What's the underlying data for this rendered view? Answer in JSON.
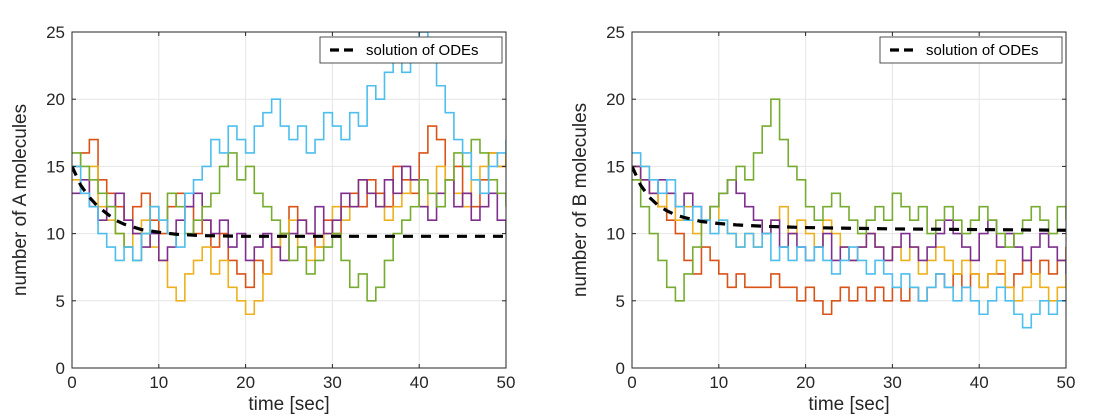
{
  "chart_data": [
    {
      "type": "line",
      "xlabel": "time [sec]",
      "ylabel": "number of A molecules",
      "xlim": [
        0,
        50
      ],
      "ylim": [
        0,
        25
      ],
      "xticks": [
        0,
        10,
        20,
        30,
        40,
        50
      ],
      "yticks": [
        0,
        5,
        10,
        15,
        20,
        25
      ],
      "grid": true,
      "legend": {
        "position": "top-right",
        "entries": [
          "solution of ODEs"
        ]
      },
      "series": [
        {
          "name": "solution of ODEs",
          "style": "dashed",
          "color": "#000000",
          "x": [
            0,
            1,
            2,
            3,
            4,
            5,
            6,
            8,
            10,
            12,
            15,
            20,
            25,
            30,
            40,
            50
          ],
          "y": [
            15,
            13.6,
            12.7,
            12.0,
            11.5,
            11.0,
            10.7,
            10.3,
            10.1,
            9.95,
            9.85,
            9.8,
            9.8,
            9.8,
            9.8,
            9.8
          ]
        },
        {
          "color": "#D95319",
          "x": [
            0,
            1,
            2,
            3,
            4,
            5,
            6,
            7,
            8,
            9,
            10,
            11,
            12,
            13,
            14,
            15,
            16,
            17,
            18,
            19,
            20,
            21,
            22,
            23,
            24,
            25,
            26,
            27,
            28,
            29,
            30,
            31,
            32,
            33,
            34,
            35,
            36,
            37,
            38,
            39,
            40,
            41,
            42,
            43,
            44,
            45,
            46,
            47,
            48,
            49,
            50
          ],
          "y": [
            15,
            16,
            17,
            14,
            13,
            12,
            11,
            12,
            13,
            11,
            10,
            12,
            13,
            12,
            10,
            11,
            9,
            10,
            8,
            7,
            6,
            8,
            7,
            9,
            10,
            12,
            11,
            10,
            9,
            11,
            10,
            12,
            13,
            12,
            14,
            13,
            12,
            15,
            14,
            13,
            16,
            18,
            17,
            14,
            15,
            13,
            12,
            14,
            16,
            15,
            16
          ]
        },
        {
          "color": "#EDB120",
          "x": [
            0,
            1,
            2,
            3,
            4,
            5,
            6,
            7,
            8,
            9,
            10,
            11,
            12,
            13,
            14,
            15,
            16,
            17,
            18,
            19,
            20,
            21,
            22,
            23,
            24,
            25,
            26,
            27,
            28,
            29,
            30,
            31,
            32,
            33,
            34,
            35,
            36,
            37,
            38,
            39,
            40,
            41,
            42,
            43,
            44,
            45,
            46,
            47,
            48,
            49,
            50
          ],
          "y": [
            14,
            13,
            15,
            12,
            11,
            10,
            9,
            10,
            11,
            9,
            8,
            6,
            5,
            7,
            8,
            9,
            7,
            8,
            6,
            5,
            4,
            5,
            7,
            9,
            10,
            11,
            9,
            8,
            9,
            10,
            12,
            11,
            12,
            14,
            13,
            12,
            11,
            12,
            13,
            14,
            12,
            13,
            15,
            14,
            13,
            12,
            14,
            15,
            16,
            15,
            16
          ]
        },
        {
          "color": "#7E2F8E",
          "x": [
            0,
            1,
            2,
            3,
            4,
            5,
            6,
            7,
            8,
            9,
            10,
            11,
            12,
            13,
            14,
            15,
            16,
            17,
            18,
            19,
            20,
            21,
            22,
            23,
            24,
            25,
            26,
            27,
            28,
            29,
            30,
            31,
            32,
            33,
            34,
            35,
            36,
            37,
            38,
            39,
            40,
            41,
            42,
            43,
            44,
            45,
            46,
            47,
            48,
            49,
            50
          ],
          "y": [
            13,
            14,
            12,
            11,
            12,
            13,
            11,
            10,
            9,
            10,
            8,
            9,
            11,
            12,
            13,
            11,
            10,
            11,
            9,
            10,
            8,
            9,
            10,
            9,
            8,
            10,
            11,
            10,
            12,
            10,
            11,
            13,
            12,
            14,
            13,
            12,
            14,
            13,
            15,
            14,
            12,
            11,
            13,
            14,
            12,
            13,
            11,
            12,
            13,
            11,
            10
          ]
        },
        {
          "color": "#77AC30",
          "x": [
            0,
            1,
            2,
            3,
            4,
            5,
            6,
            7,
            8,
            9,
            10,
            11,
            12,
            13,
            14,
            15,
            16,
            17,
            18,
            19,
            20,
            21,
            22,
            23,
            24,
            25,
            26,
            27,
            28,
            29,
            30,
            31,
            32,
            33,
            34,
            35,
            36,
            37,
            38,
            39,
            40,
            41,
            42,
            43,
            44,
            45,
            46,
            47,
            48,
            49,
            50
          ],
          "y": [
            16,
            15,
            14,
            13,
            12,
            10,
            9,
            8,
            10,
            12,
            11,
            13,
            12,
            10,
            11,
            12,
            13,
            15,
            16,
            14,
            15,
            13,
            12,
            11,
            10,
            8,
            9,
            7,
            8,
            9,
            10,
            8,
            6,
            7,
            5,
            6,
            8,
            10,
            11,
            12,
            14,
            13,
            12,
            14,
            16,
            15,
            17,
            16,
            14,
            13,
            12
          ]
        },
        {
          "color": "#4DBEEE",
          "x": [
            0,
            1,
            2,
            3,
            4,
            5,
            6,
            7,
            8,
            9,
            10,
            11,
            12,
            13,
            14,
            15,
            16,
            17,
            18,
            19,
            20,
            21,
            22,
            23,
            24,
            25,
            26,
            27,
            28,
            29,
            30,
            31,
            32,
            33,
            34,
            35,
            36,
            37,
            38,
            39,
            40,
            41,
            42,
            43,
            44,
            45,
            46,
            47,
            48,
            49,
            50
          ],
          "y": [
            15,
            13,
            12,
            10,
            9,
            8,
            9,
            8,
            10,
            12,
            11,
            10,
            9,
            13,
            14,
            15,
            17,
            16,
            18,
            17,
            16,
            18,
            19,
            20,
            18,
            17,
            18,
            16,
            17,
            19,
            18,
            17,
            19,
            18,
            21,
            20,
            22,
            23,
            22,
            24,
            25,
            23,
            21,
            19,
            17,
            16,
            14,
            13,
            15,
            16,
            17
          ]
        }
      ]
    },
    {
      "type": "line",
      "xlabel": "time [sec]",
      "ylabel": "number of B molecules",
      "xlim": [
        0,
        50
      ],
      "ylim": [
        0,
        25
      ],
      "xticks": [
        0,
        10,
        20,
        30,
        40,
        50
      ],
      "yticks": [
        0,
        5,
        10,
        15,
        20,
        25
      ],
      "grid": true,
      "legend": {
        "position": "top-right",
        "entries": [
          "solution of ODEs"
        ]
      },
      "series": [
        {
          "name": "solution of ODEs",
          "style": "dashed",
          "color": "#000000",
          "x": [
            0,
            1,
            2,
            3,
            4,
            5,
            6,
            8,
            10,
            12,
            15,
            20,
            25,
            30,
            40,
            50
          ],
          "y": [
            15,
            13.6,
            12.7,
            12.1,
            11.7,
            11.4,
            11.2,
            10.9,
            10.75,
            10.65,
            10.55,
            10.45,
            10.4,
            10.35,
            10.3,
            10.25
          ]
        },
        {
          "color": "#D95319",
          "x": [
            0,
            1,
            2,
            3,
            4,
            5,
            6,
            7,
            8,
            9,
            10,
            11,
            12,
            13,
            14,
            15,
            16,
            17,
            18,
            19,
            20,
            21,
            22,
            23,
            24,
            25,
            26,
            27,
            28,
            29,
            30,
            31,
            32,
            33,
            34,
            35,
            36,
            37,
            38,
            39,
            40,
            41,
            42,
            43,
            44,
            45,
            46,
            47,
            48,
            49,
            50
          ],
          "y": [
            15,
            14,
            13,
            12,
            11,
            10,
            8,
            7,
            9,
            8,
            7,
            6,
            7,
            6,
            6,
            6,
            7,
            6,
            6,
            5,
            6,
            5,
            4,
            5,
            6,
            5,
            6,
            5,
            6,
            5,
            6,
            5,
            6,
            5,
            6,
            7,
            6,
            7,
            6,
            7,
            6,
            7,
            7,
            6,
            7,
            8,
            7,
            8,
            7,
            8,
            9
          ]
        },
        {
          "color": "#EDB120",
          "x": [
            0,
            1,
            2,
            3,
            4,
            5,
            6,
            7,
            8,
            9,
            10,
            11,
            12,
            13,
            14,
            15,
            16,
            17,
            18,
            19,
            20,
            21,
            22,
            23,
            24,
            25,
            26,
            27,
            28,
            29,
            30,
            31,
            32,
            33,
            34,
            35,
            36,
            37,
            38,
            39,
            40,
            41,
            42,
            43,
            44,
            45,
            46,
            47,
            48,
            49,
            50
          ],
          "y": [
            14,
            15,
            13,
            12,
            13,
            11,
            12,
            10,
            11,
            12,
            11,
            10,
            9,
            10,
            9,
            10,
            11,
            12,
            10,
            11,
            10,
            9,
            11,
            10,
            9,
            8,
            9,
            10,
            9,
            8,
            9,
            8,
            9,
            7,
            8,
            9,
            8,
            7,
            8,
            7,
            6,
            7,
            8,
            6,
            5,
            6,
            7,
            6,
            5,
            6,
            7
          ]
        },
        {
          "color": "#7E2F8E",
          "x": [
            0,
            1,
            2,
            3,
            4,
            5,
            6,
            7,
            8,
            9,
            10,
            11,
            12,
            13,
            14,
            15,
            16,
            17,
            18,
            19,
            20,
            21,
            22,
            23,
            24,
            25,
            26,
            27,
            28,
            29,
            30,
            31,
            32,
            33,
            34,
            35,
            36,
            37,
            38,
            39,
            40,
            41,
            42,
            43,
            44,
            45,
            46,
            47,
            48,
            49,
            50
          ],
          "y": [
            15,
            14,
            13,
            14,
            13,
            12,
            13,
            12,
            11,
            12,
            13,
            14,
            13,
            12,
            11,
            10,
            11,
            9,
            10,
            9,
            8,
            9,
            10,
            8,
            9,
            8,
            9,
            10,
            9,
            8,
            9,
            10,
            9,
            8,
            9,
            10,
            11,
            10,
            9,
            8,
            10,
            11,
            9,
            10,
            9,
            8,
            9,
            10,
            9,
            8,
            7
          ]
        },
        {
          "color": "#77AC30",
          "x": [
            0,
            1,
            2,
            3,
            4,
            5,
            6,
            7,
            8,
            9,
            10,
            11,
            12,
            13,
            14,
            15,
            16,
            17,
            18,
            19,
            20,
            21,
            22,
            23,
            24,
            25,
            26,
            27,
            28,
            29,
            30,
            31,
            32,
            33,
            34,
            35,
            36,
            37,
            38,
            39,
            40,
            41,
            42,
            43,
            44,
            45,
            46,
            47,
            48,
            49,
            50
          ],
          "y": [
            14,
            12,
            10,
            8,
            6,
            5,
            7,
            9,
            11,
            12,
            13,
            14,
            15,
            14,
            16,
            18,
            20,
            17,
            15,
            14,
            12,
            11,
            12,
            13,
            12,
            11,
            10,
            11,
            12,
            11,
            13,
            12,
            11,
            12,
            10,
            11,
            12,
            11,
            10,
            11,
            12,
            11,
            10,
            9,
            10,
            11,
            12,
            11,
            10,
            12,
            11
          ]
        },
        {
          "color": "#4DBEEE",
          "x": [
            0,
            1,
            2,
            3,
            4,
            5,
            6,
            7,
            8,
            9,
            10,
            11,
            12,
            13,
            14,
            15,
            16,
            17,
            18,
            19,
            20,
            21,
            22,
            23,
            24,
            25,
            26,
            27,
            28,
            29,
            30,
            31,
            32,
            33,
            34,
            35,
            36,
            37,
            38,
            39,
            40,
            41,
            42,
            43,
            44,
            45,
            46,
            47,
            48,
            49,
            50
          ],
          "y": [
            16,
            15,
            14,
            13,
            14,
            12,
            11,
            12,
            11,
            10,
            11,
            10,
            9,
            10,
            9,
            10,
            8,
            9,
            8,
            9,
            8,
            9,
            8,
            7,
            8,
            9,
            8,
            7,
            8,
            7,
            6,
            7,
            6,
            5,
            6,
            7,
            6,
            5,
            6,
            5,
            4,
            5,
            6,
            5,
            4,
            3,
            4,
            5,
            4,
            5,
            5
          ]
        }
      ]
    }
  ]
}
